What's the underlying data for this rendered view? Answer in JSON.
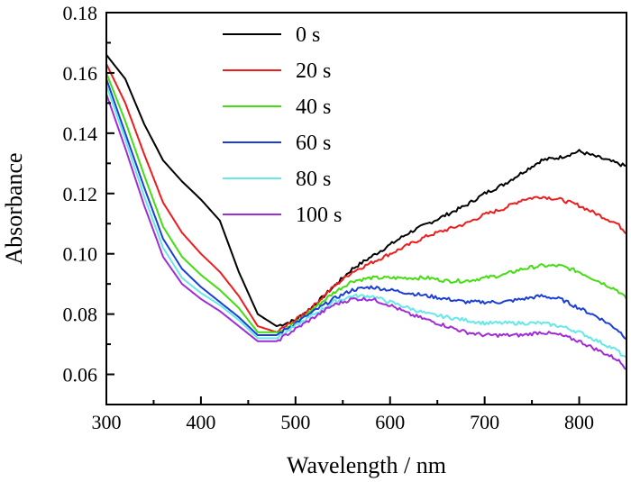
{
  "chart_data": {
    "type": "line",
    "title": "",
    "xlabel": "Wavelength / nm",
    "ylabel": "Absorbance",
    "xlim": [
      300,
      850
    ],
    "ylim": [
      0.05,
      0.18
    ],
    "xticks": [
      300,
      400,
      500,
      600,
      700,
      800
    ],
    "xtick_labels": [
      "300",
      "400",
      "500",
      "600",
      "700",
      "800"
    ],
    "yticks": [
      0.06,
      0.08,
      0.1,
      0.12,
      0.14,
      0.16,
      0.18
    ],
    "ytick_labels": [
      "0.06",
      "0.08",
      "0.10",
      "0.12",
      "0.14",
      "0.16",
      "0.18"
    ],
    "grid": false,
    "legend_position": "top-center",
    "x": [
      300,
      320,
      340,
      360,
      380,
      400,
      420,
      440,
      460,
      480,
      500,
      520,
      540,
      560,
      580,
      600,
      620,
      640,
      660,
      680,
      700,
      720,
      740,
      760,
      780,
      800,
      820,
      840,
      850
    ],
    "series": [
      {
        "name": "0 s",
        "color": "#000000",
        "values": [
          0.166,
          0.158,
          0.143,
          0.131,
          0.124,
          0.118,
          0.111,
          0.094,
          0.08,
          0.076,
          0.078,
          0.083,
          0.089,
          0.095,
          0.099,
          0.103,
          0.107,
          0.11,
          0.113,
          0.116,
          0.12,
          0.123,
          0.127,
          0.131,
          0.132,
          0.134,
          0.132,
          0.13,
          0.129
        ]
      },
      {
        "name": "20 s",
        "color": "#ee1c1c",
        "values": [
          0.163,
          0.15,
          0.133,
          0.117,
          0.107,
          0.1,
          0.094,
          0.086,
          0.076,
          0.074,
          0.078,
          0.083,
          0.089,
          0.094,
          0.097,
          0.1,
          0.103,
          0.106,
          0.108,
          0.11,
          0.113,
          0.115,
          0.118,
          0.119,
          0.118,
          0.116,
          0.113,
          0.11,
          0.107
        ]
      },
      {
        "name": "40 s",
        "color": "#44dd11",
        "values": [
          0.16,
          0.144,
          0.126,
          0.109,
          0.099,
          0.093,
          0.088,
          0.082,
          0.074,
          0.074,
          0.077,
          0.082,
          0.087,
          0.091,
          0.092,
          0.092,
          0.092,
          0.092,
          0.091,
          0.091,
          0.092,
          0.093,
          0.095,
          0.096,
          0.096,
          0.094,
          0.091,
          0.088,
          0.085
        ]
      },
      {
        "name": "60 s",
        "color": "#1c3ed8",
        "values": [
          0.158,
          0.14,
          0.122,
          0.105,
          0.095,
          0.089,
          0.084,
          0.079,
          0.073,
          0.073,
          0.077,
          0.081,
          0.085,
          0.088,
          0.089,
          0.088,
          0.087,
          0.086,
          0.085,
          0.084,
          0.084,
          0.084,
          0.085,
          0.086,
          0.085,
          0.082,
          0.079,
          0.075,
          0.072
        ]
      },
      {
        "name": "80 s",
        "color": "#66e8e8",
        "values": [
          0.156,
          0.138,
          0.119,
          0.102,
          0.092,
          0.087,
          0.083,
          0.078,
          0.072,
          0.072,
          0.076,
          0.08,
          0.084,
          0.086,
          0.086,
          0.084,
          0.082,
          0.08,
          0.079,
          0.078,
          0.077,
          0.077,
          0.077,
          0.077,
          0.076,
          0.074,
          0.071,
          0.068,
          0.065
        ]
      },
      {
        "name": "100 s",
        "color": "#a02cd8",
        "values": [
          0.153,
          0.135,
          0.116,
          0.099,
          0.09,
          0.085,
          0.081,
          0.076,
          0.071,
          0.071,
          0.075,
          0.079,
          0.083,
          0.085,
          0.085,
          0.083,
          0.08,
          0.078,
          0.076,
          0.074,
          0.073,
          0.073,
          0.073,
          0.074,
          0.073,
          0.071,
          0.068,
          0.065,
          0.062
        ]
      }
    ]
  }
}
